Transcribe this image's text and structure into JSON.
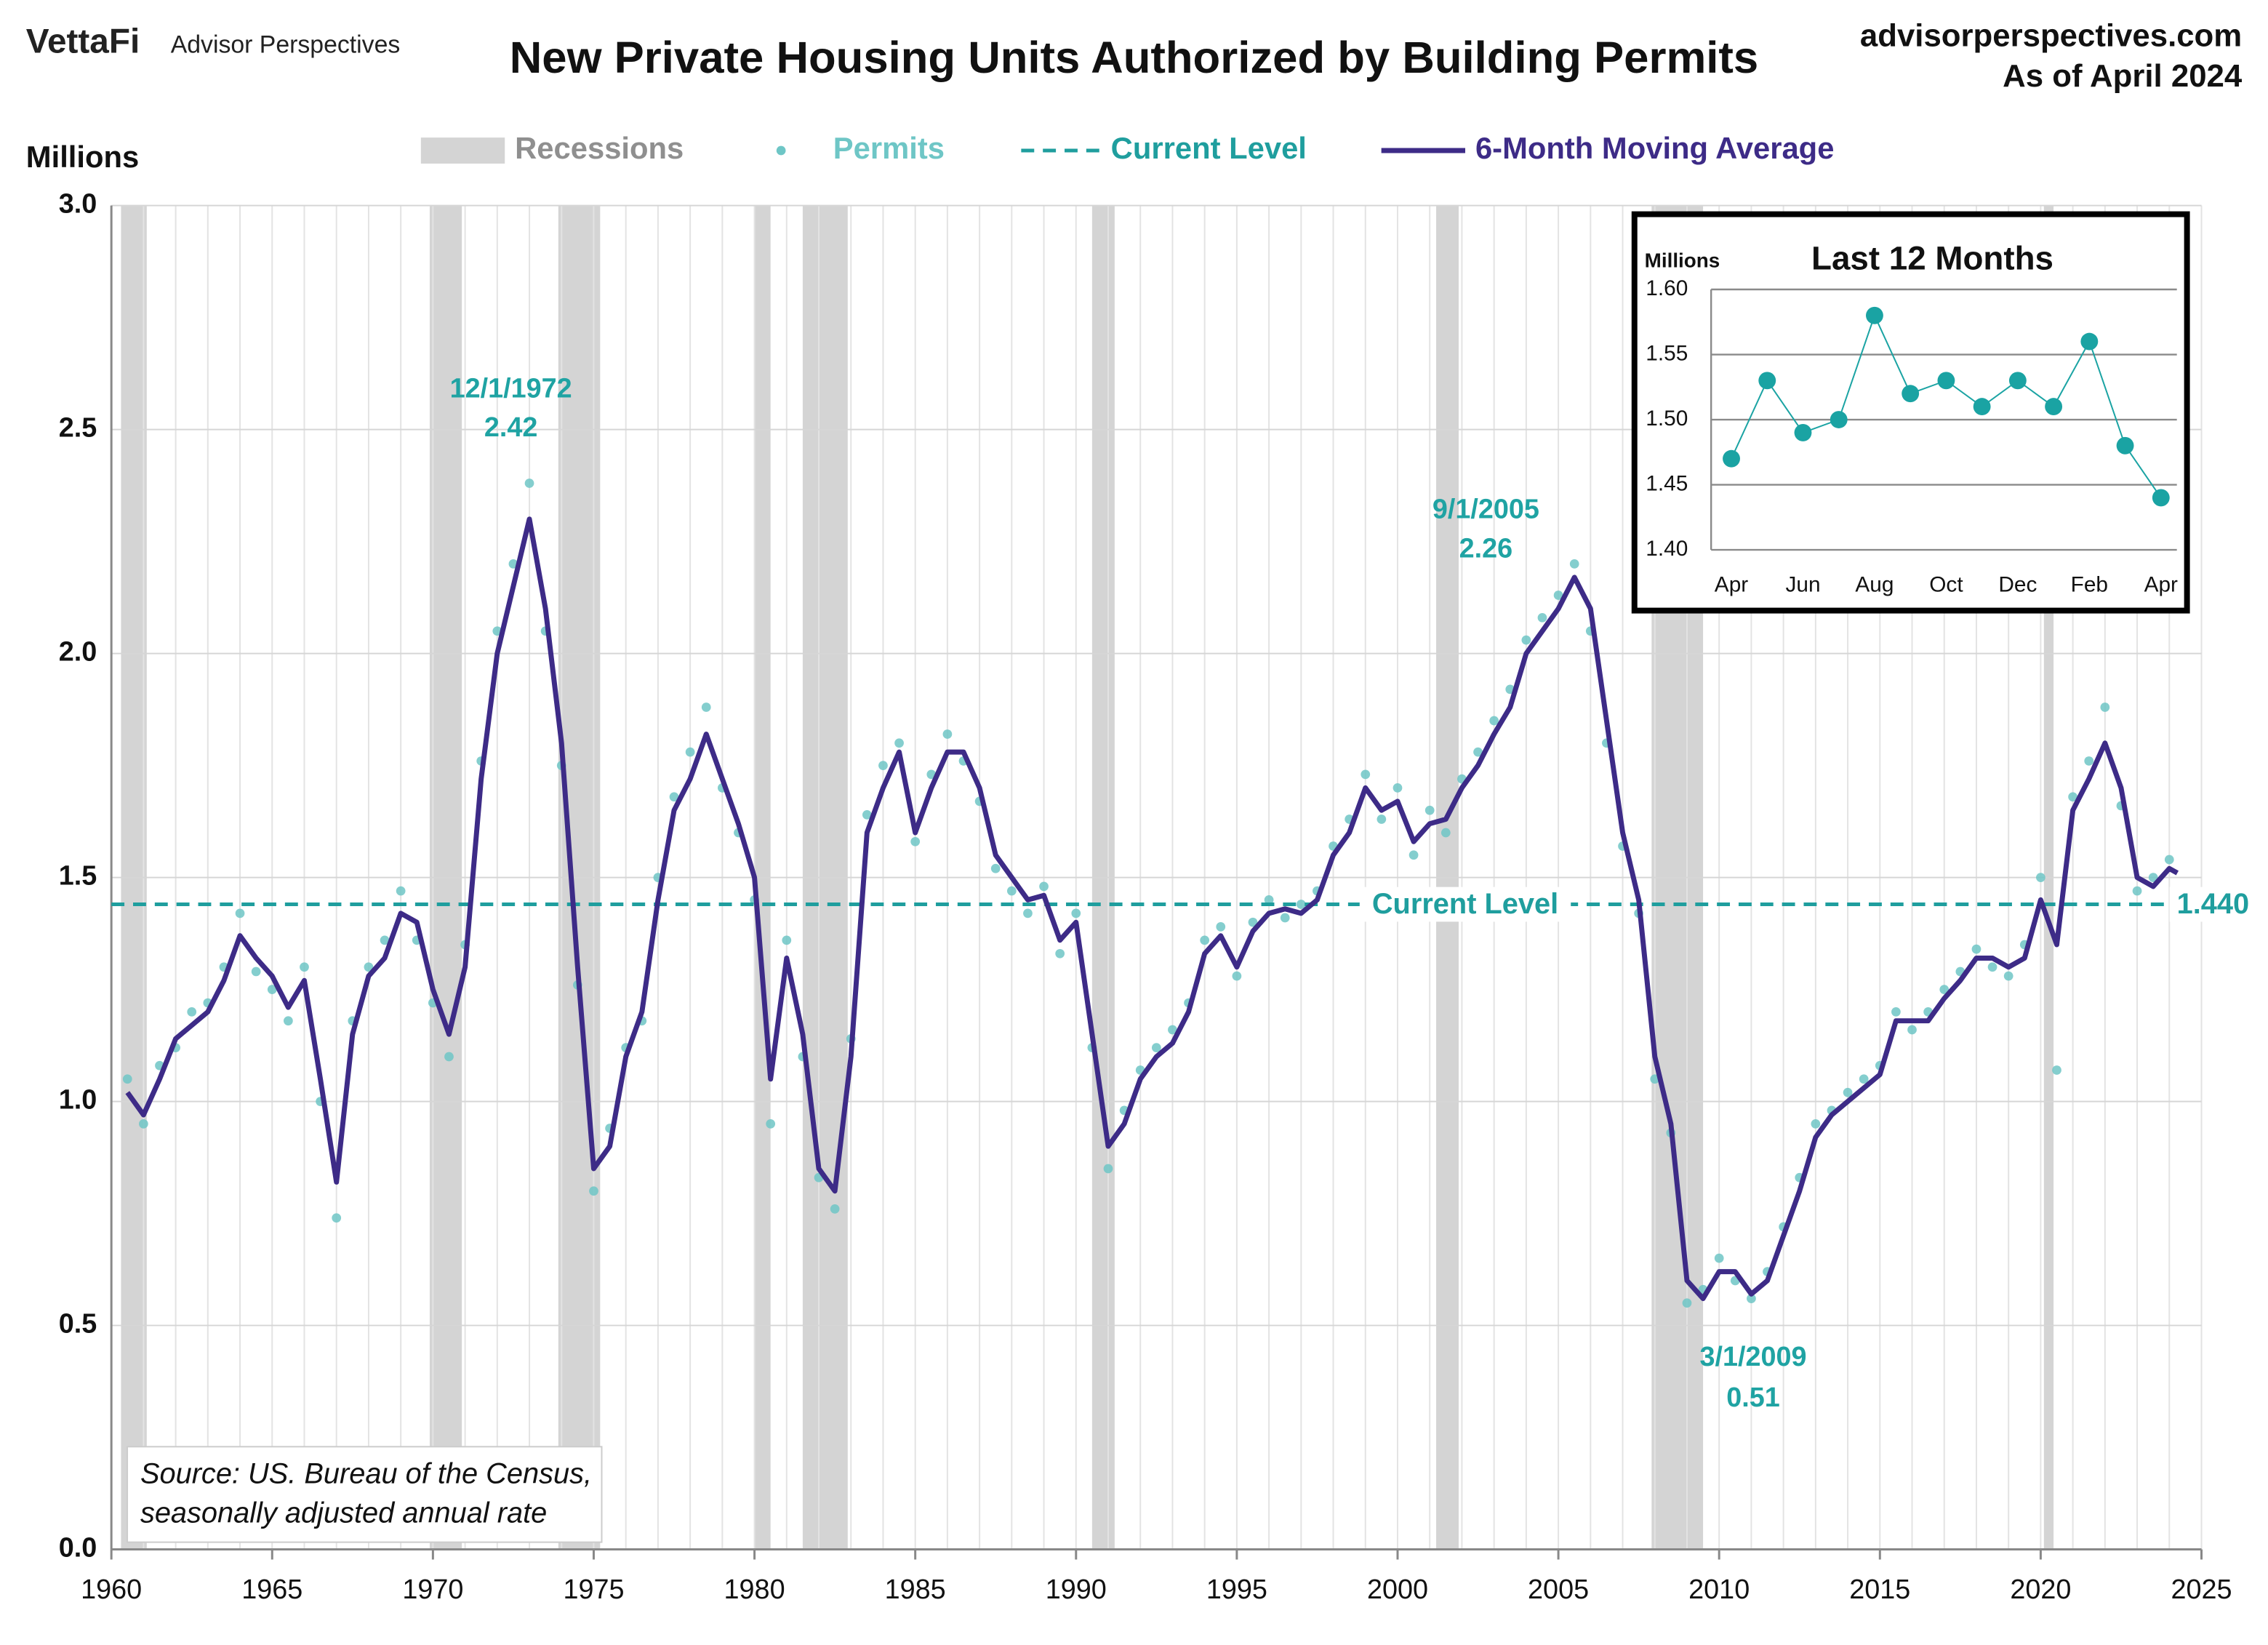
{
  "chart_data": [
    {
      "type": "line",
      "title": "New Private Housing Units Authorized by Building Permits",
      "brand": "VettaFi",
      "brand_sub": "Advisor Perspectives",
      "site": "advisorperspectives.com",
      "as_of": "As of April 2024",
      "y_label": "Millions",
      "note": [
        "Source: US. Bureau of the Census,",
        "seasonally adjusted annual rate"
      ],
      "xlim": [
        1960,
        2025
      ],
      "xticks": [
        1960,
        1965,
        1970,
        1975,
        1980,
        1985,
        1990,
        1995,
        2000,
        2005,
        2010,
        2015,
        2020,
        2025
      ],
      "ylim": [
        0,
        3
      ],
      "yticks": [
        {
          "value": 0,
          "label": "0.0"
        },
        0.5,
        {
          "value": 1,
          "label": "1.0"
        },
        1.5,
        {
          "value": 2,
          "label": "2.0"
        },
        2.5,
        {
          "value": 3,
          "label": "3.0"
        }
      ],
      "grid": true,
      "recessions": {
        "name": "Recessions",
        "color": "#d4d4d4",
        "periods": [
          [
            1960.3,
            1961.1
          ],
          [
            1969.9,
            1970.9
          ],
          [
            1973.9,
            1975.2
          ],
          [
            1980.0,
            1980.5
          ],
          [
            1981.5,
            1982.9
          ],
          [
            1990.5,
            1991.2
          ],
          [
            2001.2,
            2001.9
          ],
          [
            2007.9,
            2009.5
          ],
          [
            2020.1,
            2020.4
          ]
        ]
      },
      "x": [
        1960.5,
        1961.0,
        1961.5,
        1962.0,
        1962.5,
        1963.0,
        1963.5,
        1964.0,
        1964.5,
        1965.0,
        1965.5,
        1966.0,
        1966.5,
        1967.0,
        1967.5,
        1968.0,
        1968.5,
        1969.0,
        1969.5,
        1970.0,
        1970.5,
        1971.0,
        1971.5,
        1972.0,
        1972.5,
        1973.0,
        1973.5,
        1974.0,
        1974.5,
        1975.0,
        1975.5,
        1976.0,
        1976.5,
        1977.0,
        1977.5,
        1978.0,
        1978.5,
        1979.0,
        1979.5,
        1980.0,
        1980.5,
        1981.0,
        1981.5,
        1982.0,
        1982.5,
        1983.0,
        1983.5,
        1984.0,
        1984.5,
        1985.0,
        1985.5,
        1986.0,
        1986.5,
        1987.0,
        1987.5,
        1988.0,
        1988.5,
        1989.0,
        1989.5,
        1990.0,
        1990.5,
        1991.0,
        1991.5,
        1992.0,
        1992.5,
        1993.0,
        1993.5,
        1994.0,
        1994.5,
        1995.0,
        1995.5,
        1996.0,
        1996.5,
        1997.0,
        1997.5,
        1998.0,
        1998.5,
        1999.0,
        1999.5,
        2000.0,
        2000.5,
        2001.0,
        2001.5,
        2002.0,
        2002.5,
        2003.0,
        2003.5,
        2004.0,
        2004.5,
        2005.0,
        2005.5,
        2006.0,
        2006.5,
        2007.0,
        2007.5,
        2008.0,
        2008.5,
        2009.0,
        2009.5,
        2010.0,
        2010.5,
        2011.0,
        2011.5,
        2012.0,
        2012.5,
        2013.0,
        2013.5,
        2014.0,
        2014.5,
        2015.0,
        2015.5,
        2016.0,
        2016.5,
        2017.0,
        2017.5,
        2018.0,
        2018.5,
        2019.0,
        2019.5,
        2020.0,
        2020.5,
        2021.0,
        2021.5,
        2022.0,
        2022.5,
        2023.0,
        2023.5,
        2024.0,
        2024.25
      ],
      "series": [
        {
          "name": "Permits",
          "color": "#6ec6c6",
          "style": "dots",
          "values": [
            1.05,
            0.95,
            1.08,
            1.12,
            1.2,
            1.22,
            1.3,
            1.42,
            1.29,
            1.25,
            1.18,
            1.3,
            1.0,
            0.74,
            1.18,
            1.3,
            1.36,
            1.47,
            1.36,
            1.22,
            1.1,
            1.35,
            1.76,
            2.05,
            2.2,
            2.38,
            2.05,
            1.75,
            1.26,
            0.8,
            0.94,
            1.12,
            1.18,
            1.5,
            1.68,
            1.78,
            1.88,
            1.7,
            1.6,
            1.45,
            0.95,
            1.36,
            1.1,
            0.83,
            0.76,
            1.14,
            1.64,
            1.75,
            1.8,
            1.58,
            1.73,
            1.82,
            1.76,
            1.67,
            1.52,
            1.47,
            1.42,
            1.48,
            1.33,
            1.42,
            1.12,
            0.85,
            0.98,
            1.07,
            1.12,
            1.16,
            1.22,
            1.36,
            1.39,
            1.28,
            1.4,
            1.45,
            1.41,
            1.44,
            1.47,
            1.57,
            1.63,
            1.73,
            1.63,
            1.7,
            1.55,
            1.65,
            1.6,
            1.72,
            1.78,
            1.85,
            1.92,
            2.03,
            2.08,
            2.13,
            2.2,
            2.05,
            1.8,
            1.57,
            1.42,
            1.05,
            0.93,
            0.55,
            0.58,
            0.65,
            0.6,
            0.56,
            0.62,
            0.72,
            0.83,
            0.95,
            0.98,
            1.02,
            1.05,
            1.08,
            1.2,
            1.16,
            1.2,
            1.25,
            1.29,
            1.34,
            1.3,
            1.28,
            1.35,
            1.5,
            1.07,
            1.68,
            1.76,
            1.88,
            1.66,
            1.47,
            1.5,
            1.54,
            1.44
          ]
        },
        {
          "name": "Current Level",
          "color": "#1f9e9e",
          "style": "dashed",
          "value": 1.44,
          "value_label": "1.440"
        },
        {
          "name": "6-Month Moving Average",
          "color": "#3d2b87",
          "style": "line",
          "values": [
            1.02,
            0.97,
            1.05,
            1.14,
            1.17,
            1.2,
            1.27,
            1.37,
            1.32,
            1.28,
            1.21,
            1.27,
            1.05,
            0.82,
            1.15,
            1.28,
            1.32,
            1.42,
            1.4,
            1.25,
            1.15,
            1.3,
            1.72,
            2.0,
            2.15,
            2.3,
            2.1,
            1.8,
            1.3,
            0.85,
            0.9,
            1.1,
            1.2,
            1.45,
            1.65,
            1.72,
            1.82,
            1.72,
            1.62,
            1.5,
            1.05,
            1.32,
            1.15,
            0.85,
            0.8,
            1.1,
            1.6,
            1.7,
            1.78,
            1.6,
            1.7,
            1.78,
            1.78,
            1.7,
            1.55,
            1.5,
            1.45,
            1.46,
            1.36,
            1.4,
            1.15,
            0.9,
            0.95,
            1.05,
            1.1,
            1.13,
            1.2,
            1.33,
            1.37,
            1.3,
            1.38,
            1.42,
            1.43,
            1.42,
            1.45,
            1.55,
            1.6,
            1.7,
            1.65,
            1.67,
            1.58,
            1.62,
            1.63,
            1.7,
            1.75,
            1.82,
            1.88,
            2.0,
            2.05,
            2.1,
            2.17,
            2.1,
            1.85,
            1.6,
            1.45,
            1.1,
            0.95,
            0.6,
            0.56,
            0.62,
            0.62,
            0.57,
            0.6,
            0.7,
            0.8,
            0.92,
            0.97,
            1.0,
            1.03,
            1.06,
            1.18,
            1.18,
            1.18,
            1.23,
            1.27,
            1.32,
            1.32,
            1.3,
            1.32,
            1.45,
            1.35,
            1.65,
            1.72,
            1.8,
            1.7,
            1.5,
            1.48,
            1.52,
            1.51
          ]
        }
      ],
      "annotations": [
        {
          "date": "12/1/1972",
          "value": 2.42,
          "x": 1972.92
        },
        {
          "date": "9/1/2005",
          "value": 2.26,
          "x": 2005.67
        },
        {
          "date": "3/1/2009",
          "value": 0.51,
          "x": 2009.17
        }
      ]
    },
    {
      "type": "line",
      "title": "Last 12 Months",
      "y_label": "Millions",
      "categories": [
        "Apr",
        null,
        "Jun",
        null,
        "Aug",
        null,
        "Oct",
        null,
        "Dec",
        null,
        "Feb",
        null,
        "Apr"
      ],
      "values": [
        1.47,
        1.53,
        1.49,
        1.5,
        1.58,
        1.52,
        1.53,
        1.51,
        1.53,
        1.51,
        1.56,
        1.48,
        1.44
      ],
      "color": "#1aa3a3",
      "ylim": [
        1.4,
        1.6
      ],
      "yticks": [
        {
          "value": 1.4,
          "label": "1.40"
        },
        {
          "value": 1.45,
          "label": "1.45"
        },
        {
          "value": 1.5,
          "label": "1.50"
        },
        {
          "value": 1.55,
          "label": "1.55"
        },
        {
          "value": 1.6,
          "label": "1.60"
        }
      ],
      "grid": true
    }
  ]
}
